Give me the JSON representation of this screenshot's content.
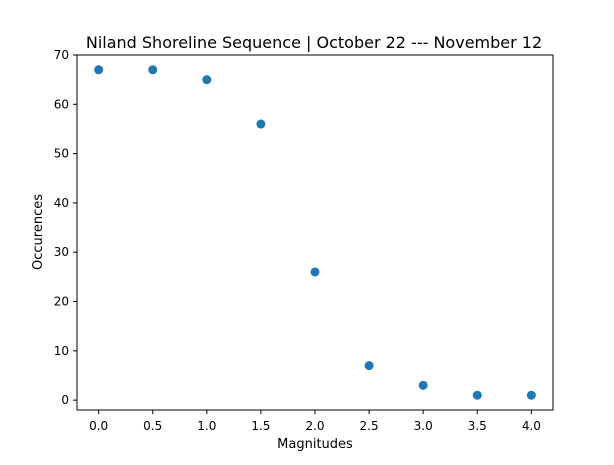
{
  "chart_data": {
    "type": "scatter",
    "title": "Niland Shoreline Sequence | October 22 --- November 12",
    "xlabel": "Magnitudes",
    "ylabel": "Occurences",
    "xlim": [
      -0.2,
      4.2
    ],
    "ylim": [
      -2,
      70
    ],
    "xticks": [
      0.0,
      0.5,
      1.0,
      1.5,
      2.0,
      2.5,
      3.0,
      3.5,
      4.0
    ],
    "xtick_labels": [
      "0.0",
      "0.5",
      "1.0",
      "1.5",
      "2.0",
      "2.5",
      "3.0",
      "3.5",
      "4.0"
    ],
    "yticks": [
      0,
      10,
      20,
      30,
      40,
      50,
      60,
      70
    ],
    "ytick_labels": [
      "0",
      "10",
      "20",
      "30",
      "40",
      "50",
      "60",
      "70"
    ],
    "grid": false,
    "series": [
      {
        "color": "#1f77b4",
        "x": [
          0.0,
          0.5,
          1.0,
          1.5,
          2.0,
          2.5,
          3.0,
          3.5,
          4.0
        ],
        "y": [
          67,
          67,
          65,
          56,
          26,
          7,
          3,
          1,
          1
        ]
      }
    ]
  }
}
